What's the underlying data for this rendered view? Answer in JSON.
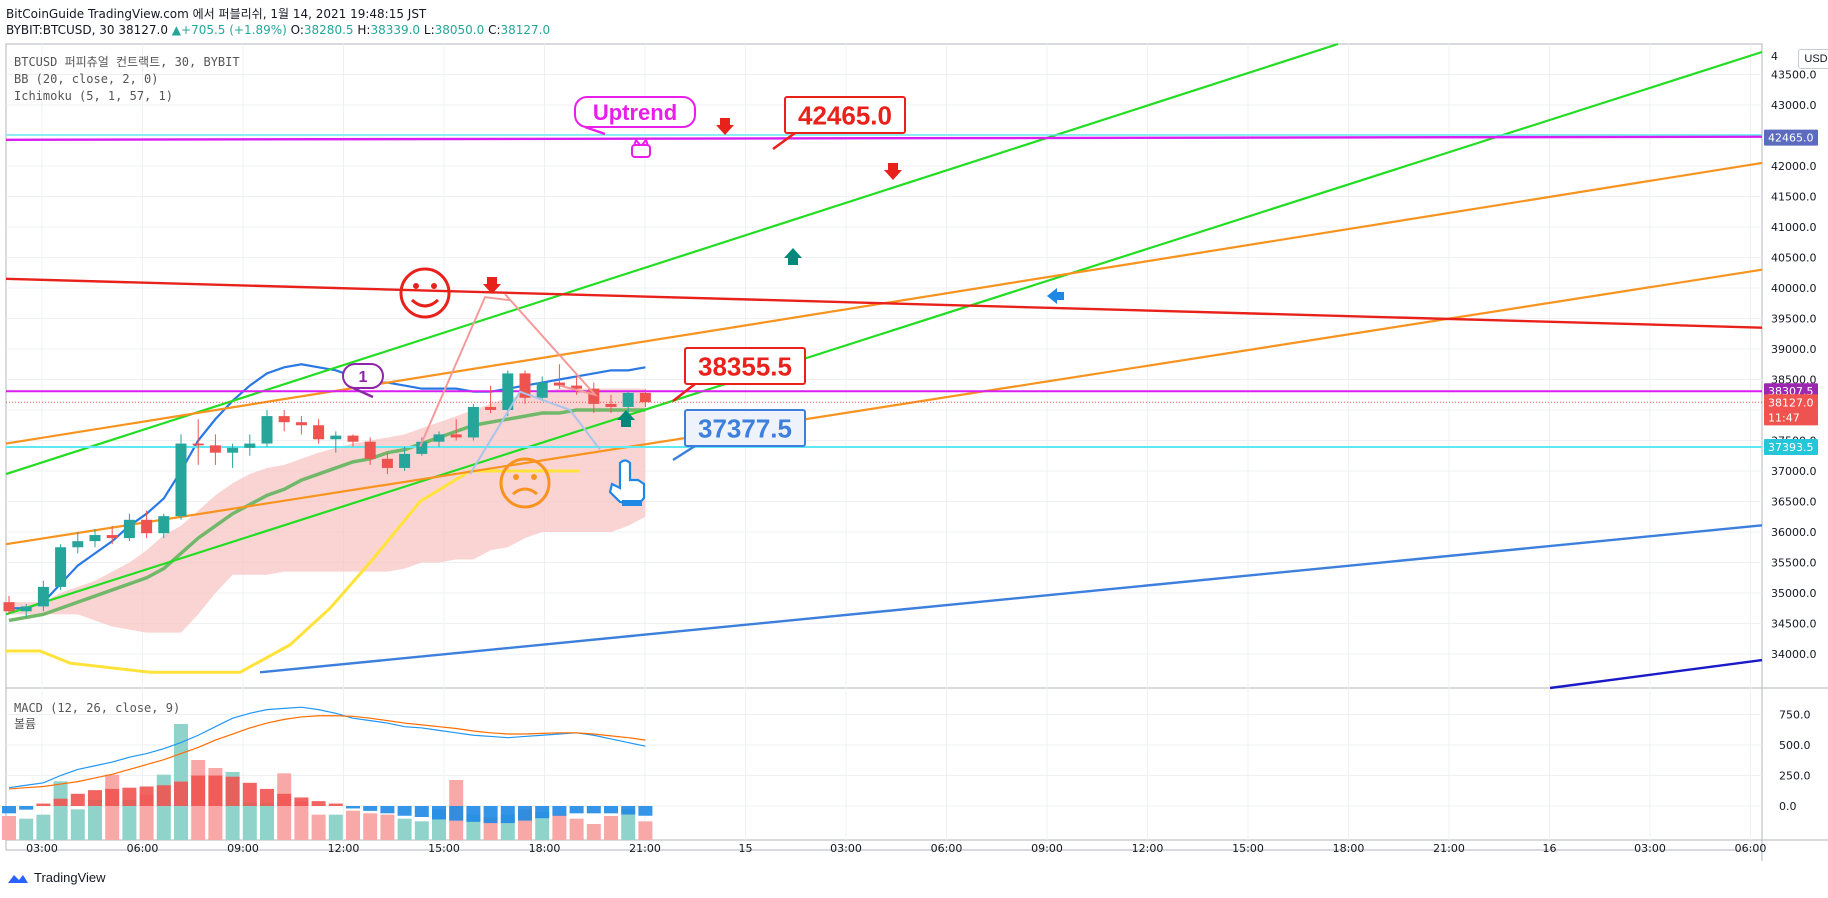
{
  "header": {
    "published": "BitCoinGuide TradingView.com 에서 퍼블리쉬, 1월 14, 2021 19:48:15 JST",
    "symbol_info": "BYBIT:BTCUSD, 30",
    "last": "38127.0",
    "change_arrow": "▲",
    "change": "+705.5 (+1.89%)",
    "o_label": "O:",
    "o_val": "38280.5",
    "h_label": "H:",
    "h_val": "38339.0",
    "l_label": "L:",
    "l_val": "38050.0",
    "c_label": "C:",
    "c_val": "38127.0"
  },
  "legend": {
    "title": "BTCUSD 퍼피츄얼 컨트랙트, 30, BYBIT",
    "bb": "BB (20, close, 2, 0)",
    "ichimoku": "Ichimoku (5, 1, 57, 1)"
  },
  "macd_legend": {
    "title": "MACD (12, 26, close, 9)",
    "volume": "볼륨"
  },
  "currency_button": "USD",
  "footer_brand": "TradingView",
  "colors": {
    "up": "#26a69a",
    "down": "#ef5350",
    "green_line": "#22dd22",
    "orange_line": "#f7931e",
    "red_line": "#e8211b",
    "blue_line": "#3d7fdc",
    "magenta_line": "#d91ef0",
    "cyan_line": "#5ee9f2",
    "kumo_fill": "#f8c6c4",
    "bb_line": "#2a78e4",
    "ma_line": "#72b86b",
    "lagging_line": "#ffe33a"
  },
  "chart_data": {
    "type": "candlestick",
    "y_axis": {
      "min": 33700,
      "max": 44000,
      "ticks": [
        34000,
        34500,
        35000,
        35500,
        36000,
        36500,
        37000,
        37500,
        38000,
        38500,
        39000,
        39500,
        40000,
        40500,
        41000,
        41500,
        42000,
        42500,
        43000,
        43500
      ],
      "tick_labels": [
        "34000.0",
        "34500.0",
        "35000.0",
        "35500.0",
        "36000.0",
        "36500.0",
        "37000.0",
        "37500.0",
        "38000.0",
        "38500.0",
        "39000.0",
        "39500.0",
        "40000.0",
        "40500.0",
        "41000.0",
        "41500.0",
        "42000.0",
        "42500.0",
        "43000.0",
        "43500.0"
      ],
      "top_partial_label": "4"
    },
    "x_axis": {
      "labels": [
        "03:00",
        "06:00",
        "09:00",
        "12:00",
        "15:00",
        "18:00",
        "21:00",
        "15",
        "03:00",
        "06:00",
        "09:00",
        "12:00",
        "15:00",
        "18:00",
        "21:00",
        "16",
        "03:00",
        "06:00"
      ]
    },
    "price_badges": [
      {
        "label": "42465.0",
        "value": 42465.0,
        "color": "#5c6bc0"
      },
      {
        "label": "38307.5",
        "value": 38307.5,
        "color": "#9c27b0"
      },
      {
        "label": "38127.0",
        "value": 38127.0,
        "color": "#ef5350"
      },
      {
        "label": "11:47",
        "value": 37880,
        "color": "#ef5350"
      },
      {
        "label": "37393.5",
        "value": 37393.5,
        "color": "#26c6da"
      }
    ],
    "candles": [
      {
        "o": 34850,
        "h": 34950,
        "l": 34650,
        "c": 34700
      },
      {
        "o": 34700,
        "h": 34820,
        "l": 34600,
        "c": 34780
      },
      {
        "o": 34780,
        "h": 35200,
        "l": 34700,
        "c": 35100
      },
      {
        "o": 35100,
        "h": 35800,
        "l": 35050,
        "c": 35750
      },
      {
        "o": 35750,
        "h": 36000,
        "l": 35650,
        "c": 35850
      },
      {
        "o": 35850,
        "h": 36050,
        "l": 35750,
        "c": 35950
      },
      {
        "o": 35950,
        "h": 36100,
        "l": 35800,
        "c": 35900
      },
      {
        "o": 35900,
        "h": 36300,
        "l": 35850,
        "c": 36200
      },
      {
        "o": 36200,
        "h": 36350,
        "l": 35900,
        "c": 35980
      },
      {
        "o": 35980,
        "h": 36300,
        "l": 35900,
        "c": 36260
      },
      {
        "o": 36260,
        "h": 37600,
        "l": 36200,
        "c": 37450
      },
      {
        "o": 37450,
        "h": 37850,
        "l": 37100,
        "c": 37420
      },
      {
        "o": 37420,
        "h": 37600,
        "l": 37100,
        "c": 37300
      },
      {
        "o": 37300,
        "h": 37450,
        "l": 37050,
        "c": 37380
      },
      {
        "o": 37380,
        "h": 37600,
        "l": 37250,
        "c": 37450
      },
      {
        "o": 37450,
        "h": 38000,
        "l": 37400,
        "c": 37900
      },
      {
        "o": 37900,
        "h": 38000,
        "l": 37650,
        "c": 37800
      },
      {
        "o": 37800,
        "h": 37900,
        "l": 37600,
        "c": 37750
      },
      {
        "o": 37750,
        "h": 37850,
        "l": 37450,
        "c": 37520
      },
      {
        "o": 37520,
        "h": 37650,
        "l": 37300,
        "c": 37580
      },
      {
        "o": 37580,
        "h": 37600,
        "l": 37400,
        "c": 37480
      },
      {
        "o": 37480,
        "h": 37550,
        "l": 37100,
        "c": 37200
      },
      {
        "o": 37200,
        "h": 37300,
        "l": 36950,
        "c": 37050
      },
      {
        "o": 37050,
        "h": 37400,
        "l": 37000,
        "c": 37280
      },
      {
        "o": 37280,
        "h": 37550,
        "l": 37250,
        "c": 37480
      },
      {
        "o": 37480,
        "h": 37650,
        "l": 37400,
        "c": 37600
      },
      {
        "o": 37600,
        "h": 37850,
        "l": 37500,
        "c": 37550
      },
      {
        "o": 37550,
        "h": 38100,
        "l": 37500,
        "c": 38050
      },
      {
        "o": 38050,
        "h": 38400,
        "l": 37950,
        "c": 38000
      },
      {
        "o": 38000,
        "h": 38650,
        "l": 37900,
        "c": 38600
      },
      {
        "o": 38600,
        "h": 38650,
        "l": 38100,
        "c": 38200
      },
      {
        "o": 38200,
        "h": 38550,
        "l": 38150,
        "c": 38450
      },
      {
        "o": 38450,
        "h": 38750,
        "l": 38350,
        "c": 38400
      },
      {
        "o": 38400,
        "h": 38550,
        "l": 38250,
        "c": 38350
      },
      {
        "o": 38350,
        "h": 38450,
        "l": 37950,
        "c": 38100
      },
      {
        "o": 38100,
        "h": 38250,
        "l": 37950,
        "c": 38050
      },
      {
        "o": 38050,
        "h": 38300,
        "l": 37900,
        "c": 38280
      },
      {
        "o": 38280,
        "h": 38339,
        "l": 38050,
        "c": 38127
      }
    ],
    "annotations": [
      {
        "text": "Uptrend",
        "color": "#e91eea"
      },
      {
        "text": "42465.0",
        "color": "#e8211b"
      },
      {
        "text": "38355.5",
        "color": "#e8211b"
      },
      {
        "text": "37377.5",
        "color": "#3d7fdc"
      },
      {
        "text": "1",
        "color": "#8e24aa"
      }
    ],
    "macd": {
      "y_ticks": [
        0,
        250,
        500,
        750
      ],
      "tick_labels": [
        "0.0",
        "250.0",
        "500.0",
        "750.0"
      ],
      "y_min": -200,
      "y_max": 900,
      "macd_line": [
        150,
        170,
        190,
        250,
        300,
        330,
        360,
        400,
        430,
        470,
        520,
        580,
        650,
        720,
        760,
        790,
        800,
        810,
        790,
        760,
        720,
        700,
        680,
        650,
        640,
        620,
        600,
        580,
        570,
        560,
        570,
        580,
        590,
        600,
        580,
        550,
        520,
        490
      ],
      "signal_line": [
        140,
        150,
        160,
        180,
        200,
        230,
        260,
        300,
        340,
        380,
        430,
        480,
        540,
        590,
        640,
        680,
        710,
        730,
        740,
        740,
        735,
        720,
        700,
        680,
        665,
        650,
        635,
        615,
        600,
        590,
        590,
        595,
        600,
        600,
        590,
        575,
        560,
        540
      ],
      "histogram": [
        -60,
        -30,
        20,
        60,
        100,
        130,
        140,
        150,
        160,
        170,
        200,
        250,
        250,
        240,
        190,
        140,
        100,
        70,
        40,
        20,
        -20,
        -40,
        -60,
        -80,
        -90,
        -110,
        -120,
        -130,
        -140,
        -140,
        -120,
        -100,
        -80,
        -60,
        -60,
        -60,
        -70,
        -80
      ],
      "volume": [
        180,
        160,
        190,
        440,
        230,
        300,
        490,
        300,
        340,
        490,
        870,
        600,
        540,
        510,
        280,
        280,
        500,
        290,
        190,
        190,
        220,
        200,
        190,
        160,
        140,
        230,
        450,
        190,
        170,
        190,
        230,
        210,
        190,
        160,
        120,
        180,
        230,
        140
      ]
    }
  }
}
